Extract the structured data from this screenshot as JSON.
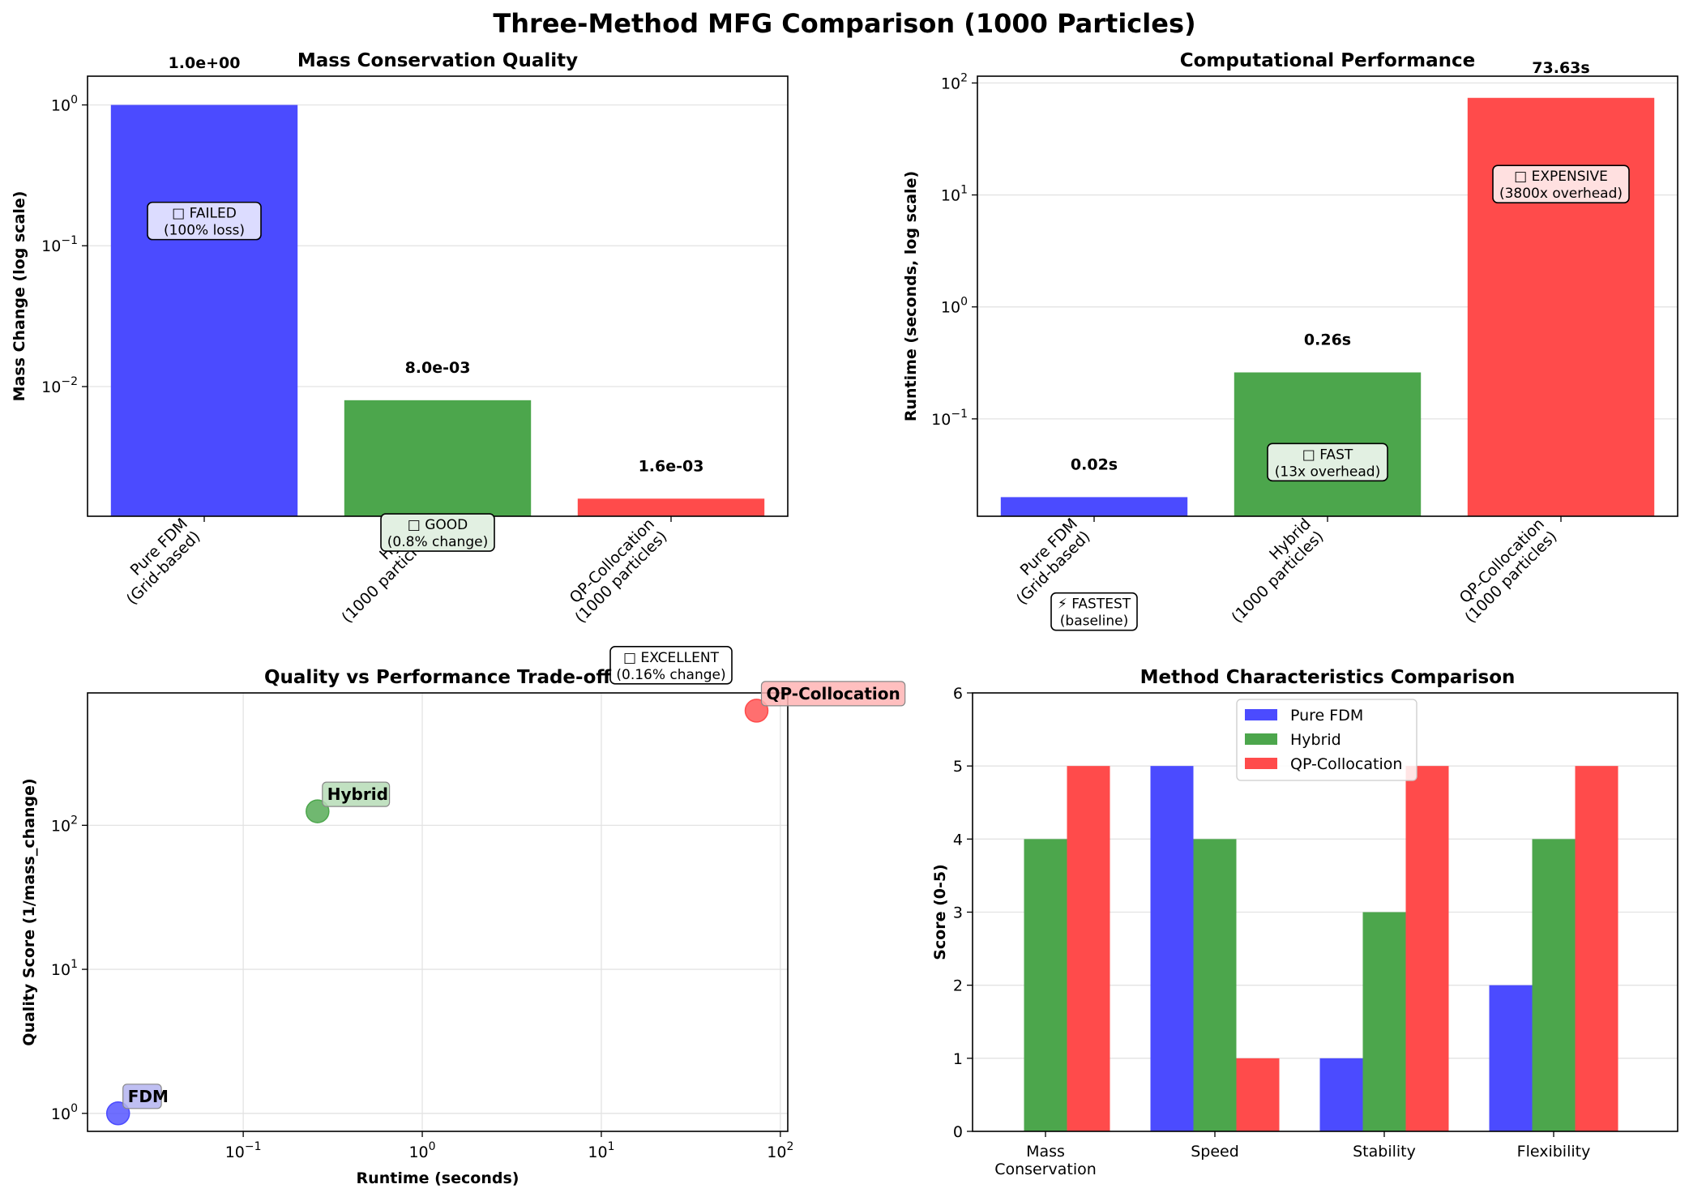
{
  "figure": {
    "title": "Three-Method MFG Comparison (1000 Particles)"
  },
  "chart_data": [
    {
      "id": "mass",
      "type": "bar",
      "title": "Mass Conservation Quality",
      "xlabel": "",
      "ylabel": "Mass Change (log scale)",
      "yscale": "log",
      "ylim": [
        0.0012,
        1.6
      ],
      "yticks": [
        {
          "value": 1,
          "label": "10^0"
        },
        {
          "value": 0.1,
          "label": "10^-1"
        },
        {
          "value": 0.01,
          "label": "10^-2"
        }
      ],
      "grid": "y",
      "categories": [
        [
          "Pure FDM",
          "(Grid-based)"
        ],
        [
          "Hybrid",
          "(1000 particles)"
        ],
        [
          "QP-Collocation",
          "(1000 particles)"
        ]
      ],
      "values": [
        1.0,
        0.008,
        0.0016
      ],
      "colors": [
        "#4b4bff",
        "#4ca64c",
        "#ff4b4b"
      ],
      "value_labels": [
        "1.0e+00",
        "8.0e-03",
        "1.6e-03"
      ],
      "annotations": [
        {
          "icon": "□",
          "lines": [
            "FAILED",
            "(100% loss)"
          ],
          "bg": "#dcdcff",
          "value": 0.15
        },
        {
          "icon": "□",
          "lines": [
            "GOOD",
            "(0.8% change)"
          ],
          "bg": "#e2f0e2",
          "value": 0.00092
        },
        {
          "icon": "□",
          "lines": [
            "EXCELLENT",
            "(0.16% change)"
          ],
          "bg": "#ffffff",
          "value": 0.000105
        }
      ]
    },
    {
      "id": "runtime",
      "type": "bar",
      "title": "Computational Performance",
      "xlabel": "",
      "ylabel": "Runtime (seconds, log scale)",
      "yscale": "log",
      "ylim": [
        0.0135,
        115
      ],
      "yticks": [
        {
          "value": 100,
          "label": "10^2"
        },
        {
          "value": 10,
          "label": "10^1"
        },
        {
          "value": 1,
          "label": "10^0"
        },
        {
          "value": 0.1,
          "label": "10^-1"
        }
      ],
      "grid": "y",
      "categories": [
        [
          "Pure FDM",
          "(Grid-based)"
        ],
        [
          "Hybrid",
          "(1000 particles)"
        ],
        [
          "QP-Collocation",
          "(1000 particles)"
        ]
      ],
      "values": [
        0.02,
        0.26,
        73.63
      ],
      "colors": [
        "#4b4bff",
        "#4ca64c",
        "#ff4b4b"
      ],
      "value_labels": [
        "0.02s",
        "0.26s",
        "73.63s"
      ],
      "annotations": [
        {
          "icon": "⚡",
          "lines": [
            "FASTEST",
            "(baseline)"
          ],
          "bg": "#ffffff",
          "value": 0.0019
        },
        {
          "icon": "□",
          "lines": [
            "FAST",
            "(13x overhead)"
          ],
          "bg": "#e2f0e2",
          "value": 0.041
        },
        {
          "icon": "□",
          "lines": [
            "EXPENSIVE",
            "(3800x overhead)"
          ],
          "bg": "#ffe0e0",
          "value": 12.5
        }
      ]
    },
    {
      "id": "tradeoff",
      "type": "scatter",
      "title": "Quality vs Performance Trade-off",
      "xlabel": "Runtime (seconds)",
      "ylabel": "Quality Score (1/mass_change)",
      "xscale": "log",
      "yscale": "log",
      "xlim": [
        0.0135,
        110
      ],
      "ylim": [
        0.75,
        830
      ],
      "xticks": [
        {
          "value": 0.1,
          "label": "10^-1"
        },
        {
          "value": 1,
          "label": "10^0"
        },
        {
          "value": 10,
          "label": "10^1"
        },
        {
          "value": 100,
          "label": "10^2"
        }
      ],
      "yticks": [
        {
          "value": 100,
          "label": "10^2"
        },
        {
          "value": 10,
          "label": "10^1"
        },
        {
          "value": 1,
          "label": "10^0"
        }
      ],
      "grid": "both",
      "points": [
        {
          "name": "FDM",
          "x": 0.02,
          "y": 1.0,
          "color": "#4b4bff",
          "label_bg": "#b4b4f0"
        },
        {
          "name": "Hybrid",
          "x": 0.26,
          "y": 125,
          "color": "#4ca64c",
          "label_bg": "#b6dcb6"
        },
        {
          "name": "QP-Collocation",
          "x": 73.63,
          "y": 625,
          "color": "#ff4b4b",
          "label_bg": "#ffb4b4"
        }
      ]
    },
    {
      "id": "characteristics",
      "type": "bar",
      "title": "Method Characteristics Comparison",
      "xlabel": "",
      "ylabel": "Score (0-5)",
      "ylim": [
        0,
        6
      ],
      "yticks": [
        0,
        1,
        2,
        3,
        4,
        5,
        6
      ],
      "grid": "y",
      "legend": "upper-center",
      "categories": [
        [
          "Mass",
          "Conservation"
        ],
        [
          "Speed"
        ],
        [
          "Stability"
        ],
        [
          "Flexibility"
        ]
      ],
      "series": [
        {
          "name": "Pure FDM",
          "values": [
            0,
            5,
            1,
            2
          ],
          "color": "#4b4bff"
        },
        {
          "name": "Hybrid",
          "values": [
            4,
            4,
            3,
            4
          ],
          "color": "#4ca64c"
        },
        {
          "name": "QP-Collocation",
          "values": [
            5,
            1,
            5,
            5
          ],
          "color": "#ff4b4b"
        }
      ]
    }
  ]
}
